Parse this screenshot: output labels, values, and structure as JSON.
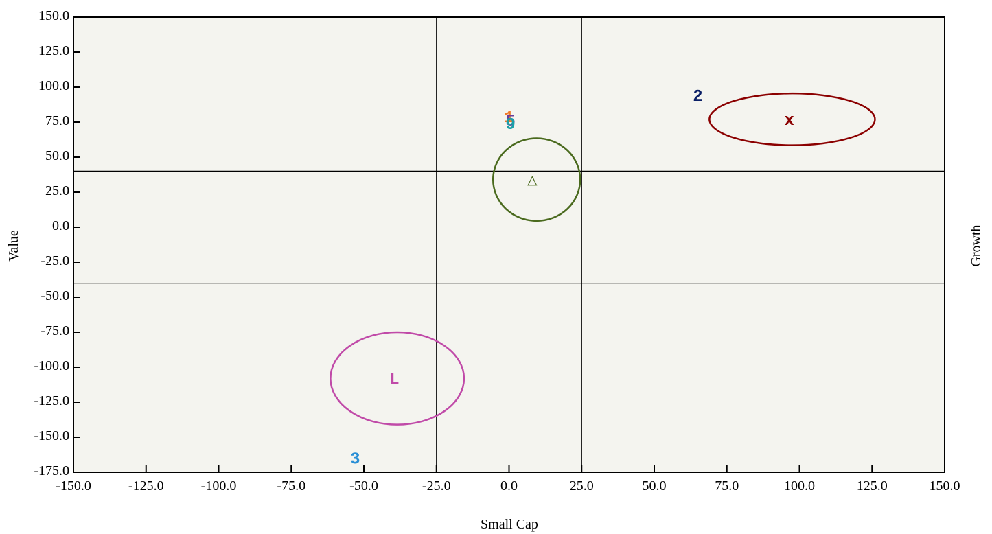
{
  "chart_data": {
    "type": "scatter",
    "title": "",
    "xlabel": "Small Cap",
    "ylabel_left": "Value",
    "ylabel_right": "Growth",
    "xlim": [
      -150,
      150
    ],
    "ylim": [
      -175,
      150
    ],
    "x_ticks": [
      "-150.0",
      "-125.0",
      "-100.0",
      "-75.0",
      "-50.0",
      "-25.0",
      "0.0",
      "25.0",
      "50.0",
      "75.0",
      "100.0",
      "125.0",
      "150.0"
    ],
    "y_ticks": [
      "150.0",
      "125.0",
      "100.0",
      "75.0",
      "50.0",
      "25.0",
      "0.0",
      "-25.0",
      "-50.0",
      "-75.0",
      "-100.0",
      "-125.0",
      "-150.0",
      "-175.0"
    ],
    "reference_lines": {
      "x": [
        -25,
        25
      ],
      "y": [
        40,
        -40
      ]
    },
    "grid": false,
    "plot_background": "#f4f4ef",
    "ellipses": [
      {
        "cx": 97.5,
        "cy": 77,
        "rx": 28.5,
        "ry": 18.5,
        "color": "#8b0000"
      },
      {
        "cx": 9.5,
        "cy": 34,
        "rx": 15,
        "ry": 29.5,
        "color": "#4a6a1e"
      },
      {
        "cx": -38.5,
        "cy": -108,
        "rx": 23,
        "ry": 33,
        "color": "#c04aa8"
      }
    ],
    "points": [
      {
        "label": "x",
        "x": 96.5,
        "y": 77,
        "color": "#8b0000"
      },
      {
        "label": "△",
        "x": 8,
        "y": 34,
        "color": "#4a6a1e"
      },
      {
        "label": "L",
        "x": -39.5,
        "y": -108,
        "color": "#c04aa8"
      },
      {
        "label": "2",
        "x": 65,
        "y": 94,
        "color": "#0a1f66"
      },
      {
        "label": "3",
        "x": -53,
        "y": -165,
        "color": "#2a8fd6"
      },
      {
        "label": "1",
        "x": 0,
        "y": 79,
        "color": "#f07a2a"
      },
      {
        "label": "5",
        "x": 0.5,
        "y": 76.5,
        "color": "#6a3d9a"
      },
      {
        "label": "9",
        "x": 0.5,
        "y": 74,
        "color": "#1aa0a8"
      }
    ]
  }
}
